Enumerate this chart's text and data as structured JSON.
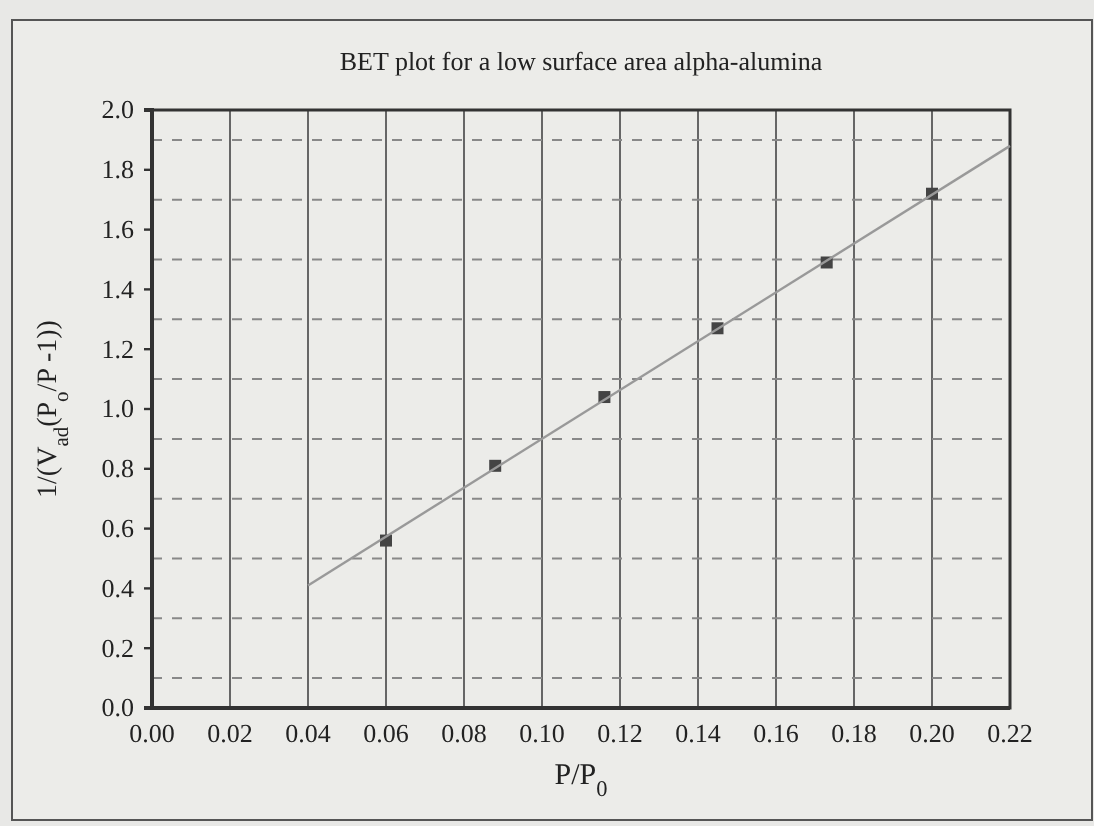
{
  "chart_data": {
    "type": "scatter",
    "title": "BET plot for a low surface area alpha-alumina",
    "xlabel": "P/P$_{0}$",
    "ylabel": "1/(V$_{ad}$(P$_{o}$/P -1))",
    "xlim": [
      0,
      0.22
    ],
    "xticks": [
      {
        "value": 0,
        "label": "0.00"
      },
      {
        "value": 0.02,
        "label": "0.02"
      },
      {
        "value": 0.04,
        "label": "0.04"
      },
      {
        "value": 0.06,
        "label": "0.06"
      },
      {
        "value": 0.08,
        "label": "0.08"
      },
      {
        "value": 0.1,
        "label": "0.10"
      },
      {
        "value": 0.12,
        "label": "0.12"
      },
      {
        "value": 0.14,
        "label": "0.14"
      },
      {
        "value": 0.16,
        "label": "0.16"
      },
      {
        "value": 0.18,
        "label": "0.18"
      },
      {
        "value": 0.2,
        "label": "0.20"
      },
      {
        "value": 0.22,
        "label": "0.22"
      }
    ],
    "ylim": [
      0,
      2
    ],
    "yticks": [
      {
        "value": 0,
        "label": "0.0"
      },
      {
        "value": 0.2,
        "label": "0.2"
      },
      {
        "value": 0.4,
        "label": "0.4"
      },
      {
        "value": 0.6,
        "label": "0.6"
      },
      {
        "value": 0.8,
        "label": "0.8"
      },
      {
        "value": 1,
        "label": "1.0"
      },
      {
        "value": 1.2,
        "label": "1.2"
      },
      {
        "value": 1.4,
        "label": "1.4"
      },
      {
        "value": 1.6,
        "label": "1.6"
      },
      {
        "value": 1.8,
        "label": "1.8"
      },
      {
        "value": 2,
        "label": "2.0"
      }
    ],
    "grid": true,
    "marker": "square",
    "series": [
      {
        "color": "#444444",
        "x": [
          0.06,
          0.088,
          0.116,
          0.145,
          0.173,
          0.2
        ],
        "values": [
          0.56,
          0.81,
          1.04,
          1.27,
          1.49,
          1.72
        ]
      },
      {
        "type": "line",
        "marker": "none",
        "color": "#999999",
        "x": [
          0.04,
          0.22
        ],
        "values": [
          0.41,
          1.88
        ]
      }
    ]
  }
}
